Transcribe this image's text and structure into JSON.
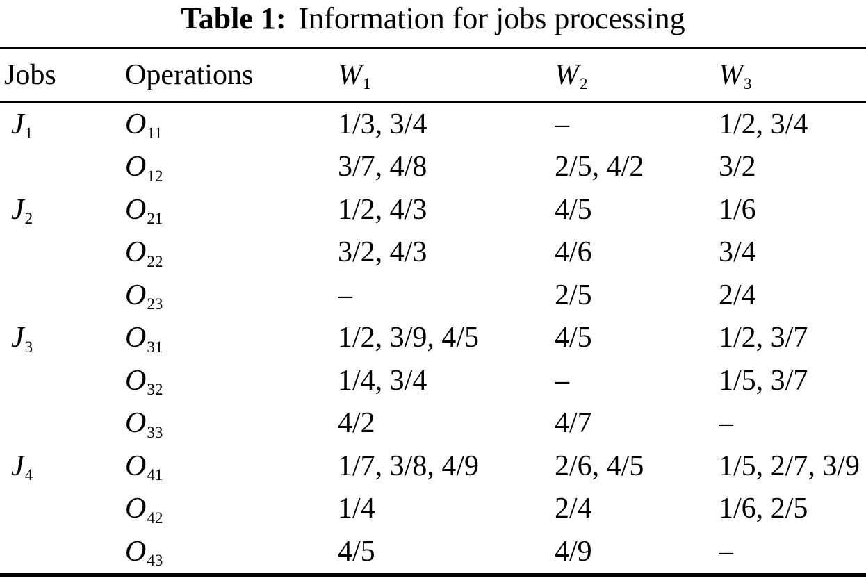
{
  "colors": {
    "background": "#ffffff",
    "text": "#000000",
    "rule": "#000000"
  },
  "caption": {
    "label": "Table 1:",
    "text": "Information for jobs processing"
  },
  "table": {
    "headers": [
      {
        "main": "Jobs",
        "sub": ""
      },
      {
        "main": "Operations",
        "sub": ""
      },
      {
        "main": "W",
        "sub": "1"
      },
      {
        "main": "W",
        "sub": "2"
      },
      {
        "main": "W",
        "sub": "3"
      }
    ],
    "rows": [
      {
        "job": {
          "main": "J",
          "sub": "1"
        },
        "operation": {
          "main": "O",
          "sub": "11"
        },
        "w1": "1/3, 3/4",
        "w2": "–",
        "w3": "1/2, 3/4"
      },
      {
        "job": null,
        "operation": {
          "main": "O",
          "sub": "12"
        },
        "w1": "3/7, 4/8",
        "w2": "2/5, 4/2",
        "w3": "3/2"
      },
      {
        "job": {
          "main": "J",
          "sub": "2"
        },
        "operation": {
          "main": "O",
          "sub": "21"
        },
        "w1": "1/2, 4/3",
        "w2": "4/5",
        "w3": "1/6"
      },
      {
        "job": null,
        "operation": {
          "main": "O",
          "sub": "22"
        },
        "w1": "3/2, 4/3",
        "w2": "4/6",
        "w3": "3/4"
      },
      {
        "job": null,
        "operation": {
          "main": "O",
          "sub": "23"
        },
        "w1": "–",
        "w2": "2/5",
        "w3": "2/4"
      },
      {
        "job": {
          "main": "J",
          "sub": "3"
        },
        "operation": {
          "main": "O",
          "sub": "31"
        },
        "w1": "1/2, 3/9, 4/5",
        "w2": "4/5",
        "w3": "1/2, 3/7"
      },
      {
        "job": null,
        "operation": {
          "main": "O",
          "sub": "32"
        },
        "w1": "1/4, 3/4",
        "w2": "–",
        "w3": "1/5, 3/7"
      },
      {
        "job": null,
        "operation": {
          "main": "O",
          "sub": "33"
        },
        "w1": "4/2",
        "w2": "4/7",
        "w3": "–"
      },
      {
        "job": {
          "main": "J",
          "sub": "4"
        },
        "operation": {
          "main": "O",
          "sub": "41"
        },
        "w1": "1/7, 3/8, 4/9",
        "w2": "2/6, 4/5",
        "w3": "1/5, 2/7, 3/9"
      },
      {
        "job": null,
        "operation": {
          "main": "O",
          "sub": "42"
        },
        "w1": "1/4",
        "w2": "2/4",
        "w3": "1/6, 2/5"
      },
      {
        "job": null,
        "operation": {
          "main": "O",
          "sub": "43"
        },
        "w1": "4/5",
        "w2": "4/9",
        "w3": "–"
      }
    ]
  }
}
